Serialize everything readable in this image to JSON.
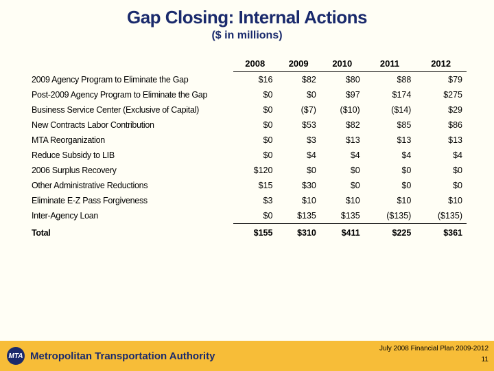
{
  "title": "Gap Closing: Internal Actions",
  "subtitle": "($ in millions)",
  "table": {
    "columns": [
      "2008",
      "2009",
      "2010",
      "2011",
      "2012"
    ],
    "rows": [
      {
        "label": "2009 Agency Program to Eliminate the Gap",
        "vals": [
          "$16",
          "$82",
          "$80",
          "$88",
          "$79"
        ]
      },
      {
        "label": "Post-2009 Agency Program to Eliminate the Gap",
        "vals": [
          "$0",
          "$0",
          "$97",
          "$174",
          "$275"
        ]
      },
      {
        "label": "Business Service Center (Exclusive of Capital)",
        "vals": [
          "$0",
          "($7)",
          "($10)",
          "($14)",
          "$29"
        ]
      },
      {
        "label": "New Contracts Labor Contribution",
        "vals": [
          "$0",
          "$53",
          "$82",
          "$85",
          "$86"
        ]
      },
      {
        "label": "MTA Reorganization",
        "vals": [
          "$0",
          "$3",
          "$13",
          "$13",
          "$13"
        ]
      },
      {
        "label": "Reduce Subsidy to LIB",
        "vals": [
          "$0",
          "$4",
          "$4",
          "$4",
          "$4"
        ]
      },
      {
        "label": "2006 Surplus Recovery",
        "vals": [
          "$120",
          "$0",
          "$0",
          "$0",
          "$0"
        ]
      },
      {
        "label": "Other Administrative Reductions",
        "vals": [
          "$15",
          "$30",
          "$0",
          "$0",
          "$0"
        ]
      },
      {
        "label": "Eliminate E-Z Pass Forgiveness",
        "vals": [
          "$3",
          "$10",
          "$10",
          "$10",
          "$10"
        ]
      },
      {
        "label": "Inter-Agency Loan",
        "vals": [
          "$0",
          "$135",
          "$135",
          "($135)",
          "($135)"
        ]
      }
    ],
    "total": {
      "label": "Total",
      "vals": [
        "$155",
        "$310",
        "$411",
        "$225",
        "$361"
      ]
    }
  },
  "footer": {
    "logo_text": "MTA",
    "org_name": "Metropolitan Transportation Authority",
    "plan_text": "July 2008 Financial Plan 2009-2012",
    "page_number": "11"
  },
  "colors": {
    "background": "#fffef5",
    "title_color": "#1a2a6c",
    "footer_bg": "#f7bd38",
    "logo_bg": "#1a2a6c"
  }
}
